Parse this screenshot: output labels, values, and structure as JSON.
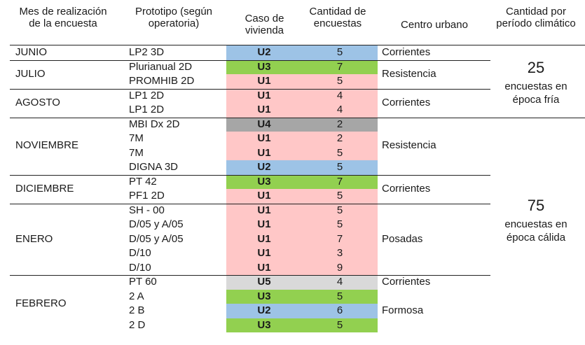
{
  "headers": {
    "month": "Mes de realización de la encuesta",
    "prototype": "Prototipo (según operatoria)",
    "case": "Caso de vivienda",
    "count": "Cantidad de encuestas",
    "center": "Centro urbano",
    "period": "Cantidad por período climático"
  },
  "colors": {
    "U1": "#ffc7c7",
    "U2": "#9dc3e6",
    "U3": "#92d050",
    "U4": "#a6a6a6",
    "U5": "#d9d9d9"
  },
  "months": [
    "JUNIO",
    "JULIO",
    "AGOSTO",
    "NOVIEMBRE",
    "DICIEMBRE",
    "ENERO",
    "FEBRERO"
  ],
  "rows": [
    {
      "proto": "LP2 3D",
      "case": "U2",
      "count": "5"
    },
    {
      "proto": "Plurianual 2D",
      "case": "U3",
      "count": "7"
    },
    {
      "proto": "PROMHIB 2D",
      "case": "U1",
      "count": "5"
    },
    {
      "proto": "LP1 2D",
      "case": "U1",
      "count": "4"
    },
    {
      "proto": "LP1 2D",
      "case": "U1",
      "count": "4"
    },
    {
      "proto": "MBI Dx 2D",
      "case": "U4",
      "count": "2"
    },
    {
      "proto": "7M",
      "case": "U1",
      "count": "2"
    },
    {
      "proto": "7M",
      "case": "U1",
      "count": "5"
    },
    {
      "proto": "DIGNA 3D",
      "case": "U2",
      "count": "5"
    },
    {
      "proto": "PT 42",
      "case": "U3",
      "count": "7"
    },
    {
      "proto": "PF1 2D",
      "case": "U1",
      "count": "5"
    },
    {
      "proto": "SH - 00",
      "case": "U1",
      "count": "5"
    },
    {
      "proto": "D/05 y A/05",
      "case": "U1",
      "count": "5"
    },
    {
      "proto": "D/05 y A/05",
      "case": "U1",
      "count": "7"
    },
    {
      "proto": "D/10",
      "case": "U1",
      "count": "3"
    },
    {
      "proto": "D/10",
      "case": "U1",
      "count": "9"
    },
    {
      "proto": "PT 60",
      "case": "U5",
      "count": "4"
    },
    {
      "proto": "2 A",
      "case": "U3",
      "count": "5"
    },
    {
      "proto": "2 B",
      "case": "U2",
      "count": "6"
    },
    {
      "proto": "2 D",
      "case": "U3",
      "count": "5"
    }
  ],
  "centers": [
    "Corrientes",
    "Resistencia",
    "Corrientes",
    "Resistencia",
    "Corrientes",
    "Posadas",
    "Corrientes",
    "Formosa"
  ],
  "periods": [
    {
      "total": "25",
      "label": "encuestas en época fría"
    },
    {
      "total": "75",
      "label": "encuestas en época cálida"
    }
  ]
}
